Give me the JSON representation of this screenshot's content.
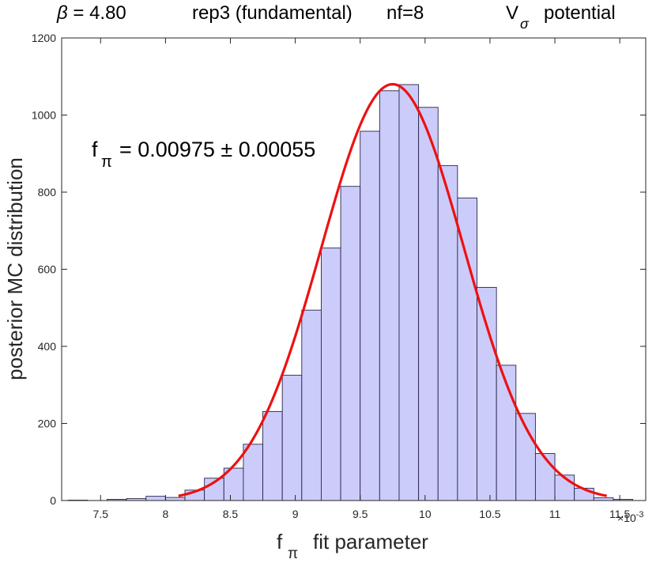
{
  "chart_data": {
    "type": "bar",
    "title_parts": {
      "beta_symbol": "β",
      "beta_text": " = 4.80",
      "rep": "rep3 (fundamental)",
      "nf": "nf=8",
      "potential_symbol": "V",
      "potential_sub": "σ",
      "potential_word": "potential"
    },
    "ylabel": "posterior MC distribution",
    "xlabel_symbol": "f",
    "xlabel_sub": "π",
    "xlabel_rest": "fit parameter",
    "x_exponent_prefix": "×10",
    "x_exponent_power": "-3",
    "annotation": {
      "symbol": "f",
      "sub": "π",
      "text": "= 0.00975 ± 0.00055"
    },
    "xlim": [
      7.2,
      11.7
    ],
    "ylim": [
      0,
      1200
    ],
    "x_ticks": [
      7.5,
      8,
      8.5,
      9,
      9.5,
      10,
      10.5,
      11,
      11.5
    ],
    "x_tick_labels": [
      "7.5",
      "8",
      "8.5",
      "9",
      "9.5",
      "10",
      "10.5",
      "11",
      "11.5"
    ],
    "y_ticks": [
      0,
      200,
      400,
      600,
      800,
      1000,
      1200
    ],
    "y_tick_labels": [
      "0",
      "200",
      "400",
      "600",
      "800",
      "1000",
      "1200"
    ],
    "grid": false,
    "bin_width": 0.15,
    "bin_edges_start": 7.25,
    "values": [
      1,
      0,
      3,
      5,
      11,
      8,
      27,
      58,
      84,
      146,
      231,
      325,
      494,
      655,
      815,
      958,
      1063,
      1079,
      1020,
      869,
      785,
      553,
      351,
      226,
      122,
      66,
      32,
      7,
      3,
      0
    ],
    "bar_color": "#ccccfa",
    "bar_edge_color": "#26264d",
    "fit": {
      "type": "gaussian",
      "mean": 9.75,
      "sigma": 0.55,
      "peak": 1080,
      "x_range": [
        8.1,
        11.4
      ],
      "color": "#ee1111"
    }
  }
}
